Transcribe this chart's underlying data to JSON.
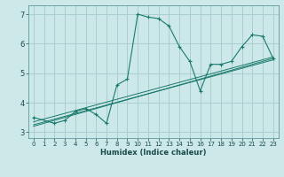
{
  "xlabel": "Humidex (Indice chaleur)",
  "xlim": [
    -0.5,
    23.5
  ],
  "ylim": [
    2.8,
    7.3
  ],
  "yticks": [
    3,
    4,
    5,
    6,
    7
  ],
  "xticks": [
    0,
    1,
    2,
    3,
    4,
    5,
    6,
    7,
    8,
    9,
    10,
    11,
    12,
    13,
    14,
    15,
    16,
    17,
    18,
    19,
    20,
    21,
    22,
    23
  ],
  "bg_color": "#cce8e8",
  "grid_color": "#aacfcf",
  "line_color": "#1a7a6e",
  "main_line": {
    "x": [
      0,
      2,
      3,
      4,
      5,
      6,
      7,
      8,
      9,
      10,
      11,
      12,
      13,
      14,
      15,
      16,
      17,
      18,
      19,
      20,
      21,
      22,
      23
    ],
    "y": [
      3.5,
      3.3,
      3.4,
      3.7,
      3.8,
      3.6,
      3.3,
      4.6,
      4.8,
      7.0,
      6.9,
      6.85,
      6.6,
      5.9,
      5.4,
      4.4,
      5.3,
      5.3,
      5.4,
      5.9,
      6.3,
      6.25,
      5.5
    ]
  },
  "reg_lines": [
    {
      "x0": 0,
      "y0": 3.35,
      "x1": 23,
      "y1": 5.55
    },
    {
      "x0": 0,
      "y0": 3.25,
      "x1": 23,
      "y1": 5.45
    },
    {
      "x0": 0,
      "y0": 3.2,
      "x1": 23,
      "y1": 5.5
    }
  ]
}
